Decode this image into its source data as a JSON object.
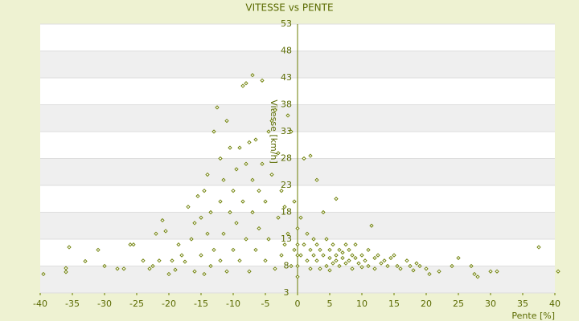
{
  "chart_data": {
    "type": "scatter",
    "title": "VITESSE vs PENTE",
    "x_label": "Pente [%]",
    "y_label": "Vitesse [km/h]",
    "xlim": [
      -40,
      40
    ],
    "ylim": [
      3,
      53
    ],
    "xticks": [
      -40,
      -35,
      -30,
      -25,
      -20,
      -15,
      -10,
      -5,
      0,
      5,
      10,
      15,
      20,
      25,
      30,
      35,
      40
    ],
    "yticks": [
      3,
      8,
      13,
      18,
      23,
      28,
      33,
      38,
      43,
      48,
      53
    ],
    "color": "#6b7d00",
    "grid": true,
    "series": [
      {
        "name": "Vitesse",
        "color": "#6b7d00",
        "x": [
          -39.5,
          -36,
          -36,
          -35.5,
          -33,
          -31,
          -30,
          -28,
          -27,
          -26,
          -25.5,
          -24,
          -23,
          -22.5,
          -22,
          -21.5,
          -21,
          -20.5,
          -20,
          -19.5,
          -19,
          -18.5,
          -18,
          -17.5,
          -17,
          -16.5,
          -16,
          -16,
          -15.5,
          -15,
          -15,
          -14.5,
          -14.5,
          -14,
          -14,
          -13.5,
          -13.5,
          -13,
          -13,
          -12.5,
          -12,
          -12,
          -12,
          -11.5,
          -11.5,
          -11,
          -11,
          -10.5,
          -10.5,
          -10,
          -10,
          -9.5,
          -9.5,
          -9,
          -9,
          -8.5,
          -8.5,
          -8,
          -8,
          -8,
          -7.5,
          -7.5,
          -7,
          -7,
          -7,
          -6.5,
          -6.5,
          -6,
          -6,
          -5.5,
          -5.5,
          -5,
          -5,
          -4.5,
          -4.5,
          -4,
          -4,
          -3.5,
          -3.5,
          -3,
          -3,
          -2.5,
          -2.5,
          -2,
          -2,
          -1.5,
          -1.5,
          -1,
          -1,
          -0.5,
          -0.5,
          0,
          0,
          0,
          0,
          0,
          0.5,
          0.5,
          1,
          1,
          1.5,
          1.5,
          2,
          2,
          2,
          2.5,
          2.5,
          3,
          3,
          3,
          3.5,
          3.5,
          4,
          4,
          4.5,
          4.5,
          5,
          5,
          5,
          5.5,
          5.5,
          6,
          6,
          6,
          6.5,
          6.5,
          7,
          7,
          7.5,
          7.5,
          8,
          8,
          8.5,
          8.5,
          9,
          9,
          9.5,
          10,
          10,
          10.5,
          11,
          11,
          11.5,
          12,
          12,
          12.5,
          13,
          13.5,
          14,
          14.5,
          15,
          15.5,
          16,
          17,
          17.5,
          18,
          18.5,
          19,
          20,
          20.5,
          22,
          24,
          25,
          27,
          27.5,
          28,
          30,
          31,
          37.5,
          40.5
        ],
        "values": [
          6.5,
          6.9,
          7.6,
          11.5,
          8.9,
          11,
          8,
          7.5,
          7.5,
          12,
          12,
          9,
          7.5,
          8,
          14,
          9,
          16.5,
          14.5,
          6.5,
          9,
          7.3,
          12,
          10,
          8.8,
          19,
          13,
          7,
          16,
          21,
          10,
          17,
          22,
          6.5,
          14,
          25,
          8,
          18,
          33,
          11,
          37.5,
          20,
          9,
          28,
          24,
          14,
          35,
          7,
          18,
          30,
          22,
          11,
          26,
          16,
          30,
          9,
          41.5,
          20,
          42,
          13,
          27,
          31,
          7,
          43.5,
          18,
          24,
          31.5,
          11,
          22,
          15,
          42.5,
          27,
          9,
          20,
          33,
          13,
          35,
          25,
          37,
          7.5,
          17,
          29,
          22,
          10,
          12,
          19,
          36,
          14,
          33,
          8,
          20,
          11,
          6,
          8,
          10,
          12,
          15,
          17,
          10,
          28,
          12,
          9,
          14,
          28.5,
          11,
          7.5,
          13,
          10,
          24,
          9,
          12,
          7.5,
          11,
          18,
          10,
          8,
          13,
          9.5,
          11,
          7.2,
          8.5,
          12,
          10,
          9,
          20.5,
          11,
          8,
          9.5,
          10.5,
          8.5,
          12,
          9,
          11,
          10,
          7.5,
          9.5,
          12,
          8.5,
          10,
          7.8,
          9,
          11,
          8,
          15.5,
          9.5,
          7.5,
          10,
          8.5,
          9,
          8,
          9.5,
          10,
          8,
          7.5,
          9,
          8,
          7.2,
          8.5,
          8,
          7.5,
          6.5,
          7,
          8,
          9.5,
          8,
          6.5,
          6,
          7,
          7,
          11.5,
          7
        ]
      }
    ]
  }
}
